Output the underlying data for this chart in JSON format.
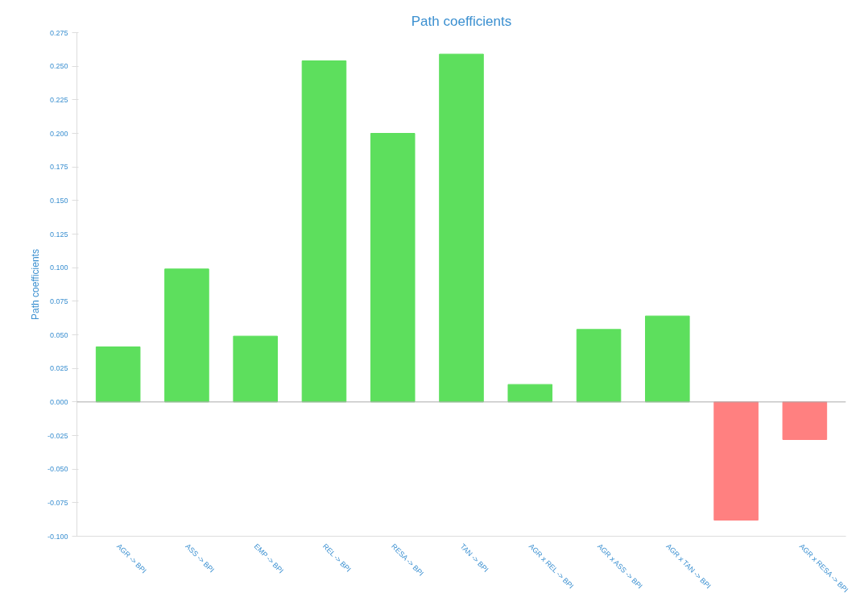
{
  "chart_data": {
    "type": "bar",
    "title": "Path coefficients",
    "ylabel": "Path coefficients",
    "categories": [
      "AGR -> BPI",
      "ASS -> BPI",
      "EMP -> BPI",
      "REL -> BPI",
      "RESA -> BPI",
      "TAN -> BPI",
      "AGR x REL -> BPI",
      "AGR x ASS -> BPI",
      "AGR x TAN -> BPI",
      null,
      "AGR x RESA -> BPI"
    ],
    "values": [
      0.041,
      0.099,
      0.049,
      0.254,
      0.2,
      0.259,
      0.013,
      0.054,
      0.064,
      -0.088,
      -0.028
    ],
    "colors": [
      "#5ddf5d",
      "#5ddf5d",
      "#5ddf5d",
      "#5ddf5d",
      "#5ddf5d",
      "#5ddf5d",
      "#5ddf5d",
      "#5ddf5d",
      "#5ddf5d",
      "#ff8080",
      "#ff8080"
    ],
    "ylim": [
      -0.1,
      0.275
    ],
    "yticks": [
      {
        "value": -0.1,
        "label": "-0.100"
      },
      {
        "value": -0.075,
        "label": "-0.075"
      },
      {
        "value": -0.05,
        "label": "-0.050"
      },
      {
        "value": -0.025,
        "label": "-0.025"
      },
      {
        "value": 0,
        "label": "0.000"
      },
      {
        "value": 0.025,
        "label": "0.025"
      },
      {
        "value": 0.05,
        "label": "0.050"
      },
      {
        "value": 0.075,
        "label": "0.075"
      },
      {
        "value": 0.1,
        "label": "0.100"
      },
      {
        "value": 0.125,
        "label": "0.125"
      },
      {
        "value": 0.15,
        "label": "0.150"
      },
      {
        "value": 0.175,
        "label": "0.175"
      },
      {
        "value": 0.2,
        "label": "0.200"
      },
      {
        "value": 0.225,
        "label": "0.225"
      },
      {
        "value": 0.25,
        "label": "0.250"
      },
      {
        "value": 0.275,
        "label": "0.275"
      }
    ],
    "ref_lines": [
      {
        "axis": "y",
        "value": 0,
        "label": null,
        "color": "#aaaaaa"
      }
    ],
    "grid": false
  }
}
